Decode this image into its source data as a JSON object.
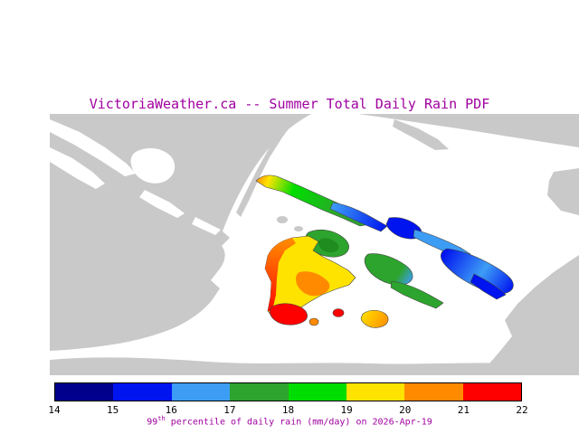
{
  "title": "VictoriaWeather.ca -- Summer Total Daily Rain PDF",
  "caption": {
    "value": "99",
    "ordinal": "th",
    "rest": " percentile of daily rain (mm/day) on 2026-Apr-19"
  },
  "colorbar": {
    "tick_labels": [
      "14",
      "15",
      "16",
      "17",
      "18",
      "19",
      "20",
      "21",
      "22"
    ],
    "segment_colors": [
      "#00008c",
      "#0014f0",
      "#3d9df5",
      "#2da42d",
      "#00dd00",
      "#ffe300",
      "#ff8a00",
      "#ff0000"
    ]
  },
  "palette": {
    "navy": "#00008c",
    "blue": "#0014f0",
    "sky": "#3d9df5",
    "green": "#2da42d",
    "dark_green": "#1e8c1e",
    "bright_green": "#00dd00",
    "yellow": "#ffe300",
    "orange": "#ff8a00",
    "red": "#ff0000"
  },
  "map": {
    "land_color": "#c9c9c9",
    "water_color": "#ffffff"
  },
  "colors": {
    "title_text": "#a000a0",
    "caption_text": "#a000a0",
    "tick_text": "#000000",
    "colorbar_border": "#000000"
  },
  "chart_data": {
    "type": "heatmap",
    "title": "VictoriaWeather.ca -- Summer Total Daily Rain PDF",
    "statistic": "99th percentile of daily rain",
    "units": "mm/day",
    "date": "2026-Apr-19",
    "colorbar_ticks": [
      14,
      15,
      16,
      17,
      18,
      19,
      20,
      21,
      22
    ],
    "colorbar_colors": [
      "#00008c",
      "#0014f0",
      "#3d9df5",
      "#2da42d",
      "#00dd00",
      "#ffe300",
      "#ff8a00",
      "#ff0000"
    ],
    "legend_position": "bottom"
  }
}
